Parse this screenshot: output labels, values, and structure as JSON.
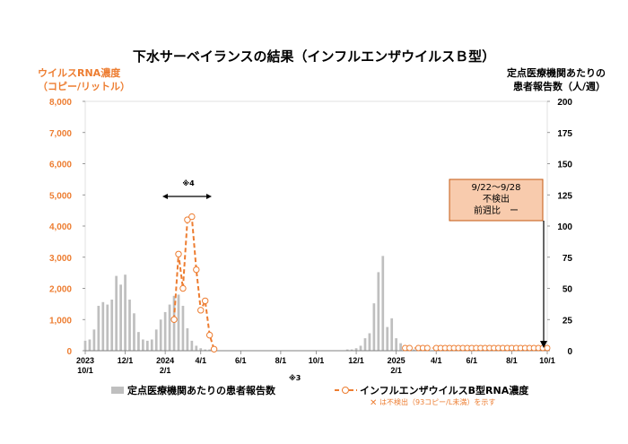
{
  "chart_data": {
    "type": "bar+line",
    "title": "下水サーベイランスの結果（インフルエンザウイルスＢ型）",
    "ylabel_left": [
      "ウイルスRNA濃度",
      "（コピー/リットル）"
    ],
    "ylabel_right": [
      "定点医療機関あたりの",
      "患者報告数（人/週）"
    ],
    "ylim_left": [
      0,
      8000
    ],
    "ylim_right": [
      0,
      200
    ],
    "yticks_left": [
      "0",
      "1,000",
      "2,000",
      "3,000",
      "4,000",
      "5,000",
      "6,000",
      "7,000",
      "8,000"
    ],
    "yticks_right": [
      "0",
      "25",
      "50",
      "75",
      "100",
      "125",
      "150",
      "175",
      "200"
    ],
    "x_labels": [
      {
        "week": 0,
        "lines": [
          "2023",
          "10/1"
        ]
      },
      {
        "week": 9,
        "lines": [
          "12/1"
        ]
      },
      {
        "week": 18,
        "lines": [
          "2024",
          "2/1"
        ]
      },
      {
        "week": 26,
        "lines": [
          "4/1"
        ]
      },
      {
        "week": 35,
        "lines": [
          "6/1"
        ]
      },
      {
        "week": 44,
        "lines": [
          "8/1"
        ]
      },
      {
        "week": 52,
        "lines": [
          "10/1"
        ]
      },
      {
        "week": 61,
        "lines": [
          "12/1"
        ]
      },
      {
        "week": 70,
        "lines": [
          "2025",
          "2/1"
        ]
      },
      {
        "week": 79,
        "lines": [
          "4/1"
        ]
      },
      {
        "week": 87,
        "lines": [
          "6/1"
        ]
      },
      {
        "week": 96,
        "lines": [
          "8/1"
        ]
      },
      {
        "week": 104,
        "lines": [
          "10/1"
        ]
      }
    ],
    "series": [
      {
        "name": "定点医療機関あたりの患者報告数",
        "type": "bar",
        "color": "#BFBFBF",
        "axis": "right",
        "values": [
          8,
          9,
          17,
          36,
          39,
          37,
          41,
          60,
          53,
          61,
          41,
          30,
          15,
          9,
          8,
          9,
          17,
          25,
          31,
          37,
          44,
          45,
          36,
          18,
          8,
          4,
          2,
          1,
          1,
          0,
          0,
          0,
          0,
          0,
          0,
          0,
          0,
          0,
          0,
          0,
          0,
          0,
          0,
          0,
          0,
          0,
          0,
          0,
          0,
          0,
          0,
          0,
          0,
          0,
          0,
          0,
          0,
          0,
          0,
          1,
          1,
          2,
          4,
          10,
          14,
          38,
          63,
          76,
          19,
          26,
          10,
          6,
          3,
          2,
          1,
          1,
          1,
          0,
          0,
          0,
          0,
          0,
          0,
          0,
          0,
          0,
          0,
          0,
          0,
          0,
          0,
          0,
          0,
          0,
          0,
          0,
          0,
          0,
          0,
          0,
          0,
          0,
          0,
          0,
          0
        ]
      },
      {
        "name": "インフルエンザウイルスB型RNA濃度",
        "type": "line",
        "color": "#ED7D31",
        "axis": "left",
        "points": [
          {
            "week": 20,
            "value": 1000
          },
          {
            "week": 21,
            "value": 3100
          },
          {
            "week": 22,
            "value": 2000
          },
          {
            "week": 23,
            "value": 4200
          },
          {
            "week": 24,
            "value": 4300
          },
          {
            "week": 25,
            "value": 2600
          },
          {
            "week": 26,
            "value": 1300
          },
          {
            "week": 27,
            "value": 1600
          },
          {
            "week": 28,
            "value": 500
          },
          {
            "week": 29,
            "value": 50
          }
        ]
      }
    ],
    "not_detected_weeks": [
      72,
      73,
      75,
      76,
      77,
      79,
      80,
      81,
      82,
      83,
      84,
      85,
      86,
      87,
      88,
      89,
      90,
      91,
      92,
      93,
      94,
      95,
      96,
      97,
      98,
      99,
      100,
      101,
      102,
      103,
      104
    ],
    "not_detected_note": "は不検出（93コピー/L未満）を示す",
    "annotations": {
      "arrow_label": "※4",
      "legend_note": "※3",
      "callout": [
        "9/22〜9/28",
        "不検出",
        "前週比　ー"
      ]
    },
    "legend": {
      "bar_label": "定点医療機関あたりの患者報告数",
      "line_label": "インフルエンザウイルスB型RNA濃度"
    },
    "colors": {
      "bar": "#BFBFBF",
      "line": "#ED7D31",
      "callout_fill": "#F8CBAD",
      "callout_border": "#C55A11"
    }
  }
}
